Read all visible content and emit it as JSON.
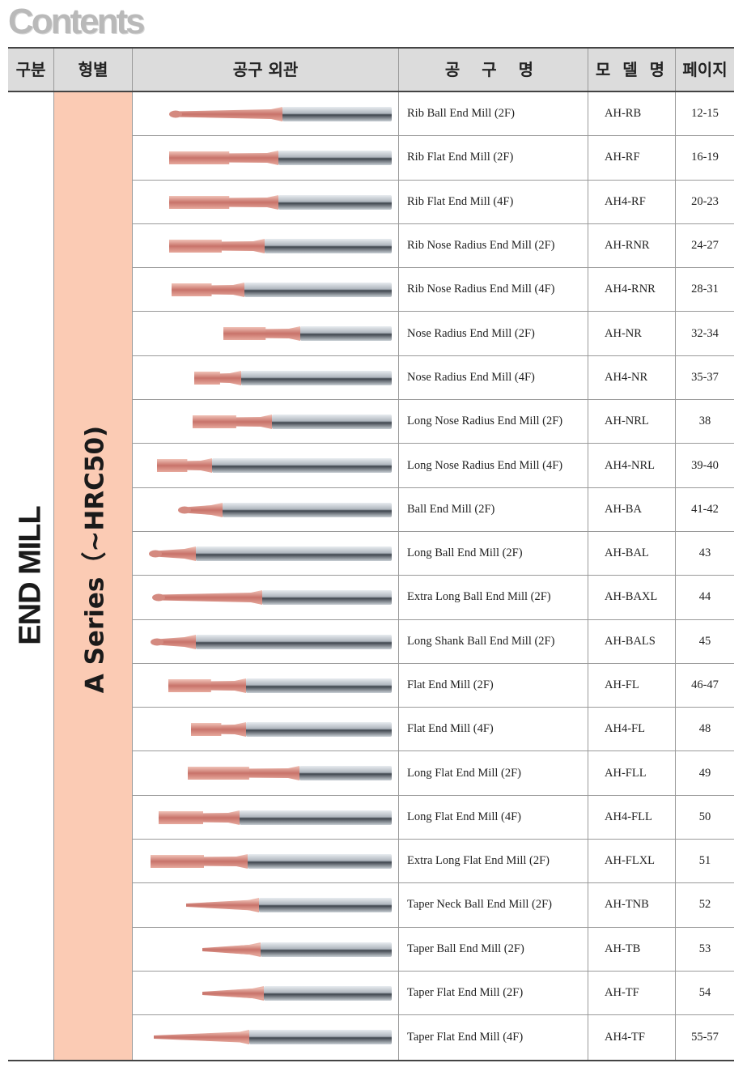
{
  "title": "Contents",
  "headers": {
    "category": "구분",
    "type": "형별",
    "appearance": "공구 외관",
    "name": "공 구 명",
    "model": "모 델 명",
    "page": "페이지"
  },
  "category": "END MILL",
  "series": "A Series（~HRC50)",
  "colors": {
    "series_bg": "#fbcbb4",
    "coating": "#d9958c",
    "shank": "#c7ccd2"
  },
  "rows": [
    {
      "name": "Rib Ball End Mill (2F)",
      "model": "AH-RB",
      "page": "12-15",
      "icon": "rib-ball-end-mill-icon"
    },
    {
      "name": "Rib Flat End Mill (2F)",
      "model": "AH-RF",
      "page": "16-19",
      "icon": "rib-flat-end-mill-icon"
    },
    {
      "name": "Rib Flat End Mill (4F)",
      "model": "AH4-RF",
      "page": "20-23",
      "icon": "rib-flat-end-mill-4f-icon"
    },
    {
      "name": "Rib Nose Radius End Mill (2F)",
      "model": "AH-RNR",
      "page": "24-27",
      "icon": "rib-nose-radius-end-mill-icon"
    },
    {
      "name": "Rib Nose Radius End Mill (4F)",
      "model": "AH4-RNR",
      "page": "28-31",
      "icon": "rib-nose-radius-end-mill-4f-icon"
    },
    {
      "name": "Nose Radius End Mill (2F)",
      "model": "AH-NR",
      "page": "32-34",
      "icon": "nose-radius-end-mill-icon"
    },
    {
      "name": "Nose Radius End Mill (4F)",
      "model": "AH4-NR",
      "page": "35-37",
      "icon": "nose-radius-end-mill-4f-icon"
    },
    {
      "name": "Long Nose Radius  End Mill (2F)",
      "model": "AH-NRL",
      "page": "38",
      "icon": "long-nose-radius-end-mill-icon"
    },
    {
      "name": "Long Nose Radius End Mill (4F)",
      "model": "AH4-NRL",
      "page": "39-40",
      "icon": "long-nose-radius-end-mill-4f-icon"
    },
    {
      "name": "Ball End Mill (2F)",
      "model": "AH-BA",
      "page": "41-42",
      "icon": "ball-end-mill-icon"
    },
    {
      "name": "Long Ball End Mill (2F)",
      "model": "AH-BAL",
      "page": "43",
      "icon": "long-ball-end-mill-icon"
    },
    {
      "name": "Extra Long Ball End Mill (2F)",
      "model": "AH-BAXL",
      "page": "44",
      "icon": "extra-long-ball-end-mill-icon"
    },
    {
      "name": "Long Shank Ball End Mill (2F)",
      "model": "AH-BALS",
      "page": "45",
      "icon": "long-shank-ball-end-mill-icon"
    },
    {
      "name": "Flat End Mill (2F)",
      "model": "AH-FL",
      "page": "46-47",
      "icon": "flat-end-mill-icon"
    },
    {
      "name": "Flat End Mill (4F)",
      "model": "AH4-FL",
      "page": "48",
      "icon": "flat-end-mill-4f-icon"
    },
    {
      "name": "Long Flat End Mill (2F)",
      "model": "AH-FLL",
      "page": "49",
      "icon": "long-flat-end-mill-icon"
    },
    {
      "name": "Long Flat End Mill (4F)",
      "model": "AH4-FLL",
      "page": "50",
      "icon": "long-flat-end-mill-4f-icon"
    },
    {
      "name": "Extra Long Flat End Mill (2F)",
      "model": "AH-FLXL",
      "page": "51",
      "icon": "extra-long-flat-end-mill-icon"
    },
    {
      "name": "Taper Neck Ball End Mill (2F)",
      "model": "AH-TNB",
      "page": "52",
      "icon": "taper-neck-ball-end-mill-icon"
    },
    {
      "name": "Taper Ball End Mill (2F)",
      "model": "AH-TB",
      "page": "53",
      "icon": "taper-ball-end-mill-icon"
    },
    {
      "name": "Taper Flat End Mill (2F)",
      "model": "AH-TF",
      "page": "54",
      "icon": "taper-flat-end-mill-icon"
    },
    {
      "name": "Taper Flat End Mill (4F)",
      "model": "AH4-TF",
      "page": "55-57",
      "icon": "taper-flat-end-mill-4f-icon"
    }
  ]
}
